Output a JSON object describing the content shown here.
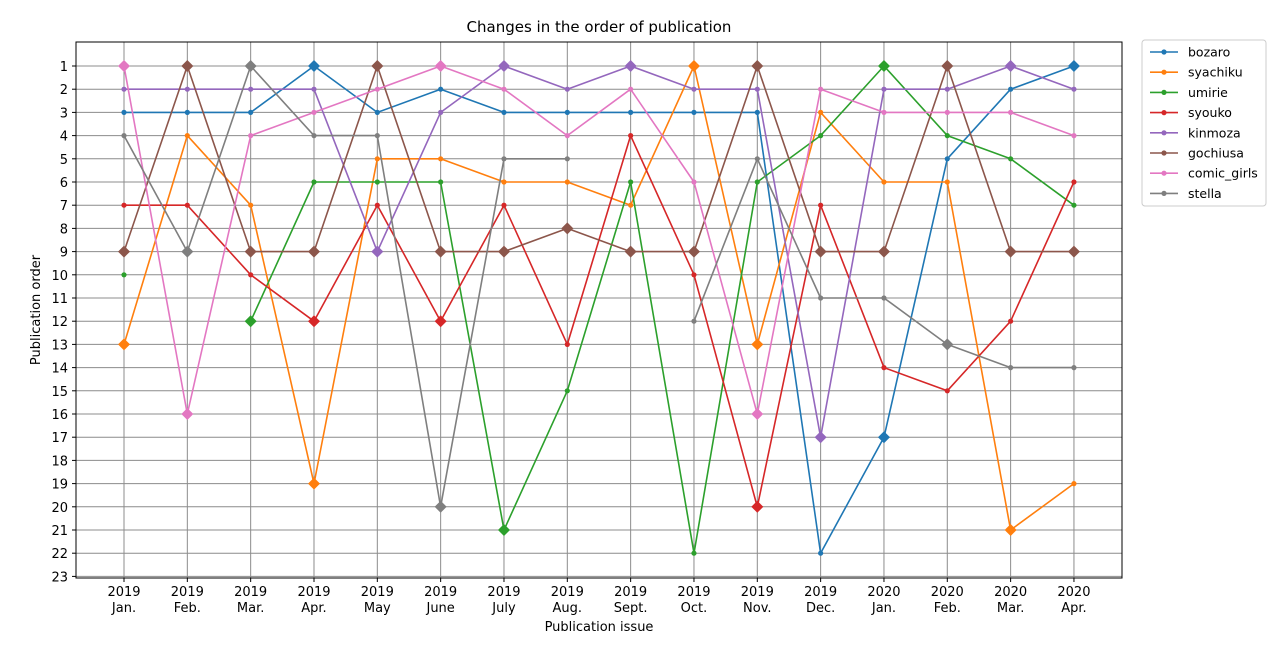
{
  "chart_data": {
    "type": "line",
    "title": "Changes in the order of publication",
    "xlabel": "Publication issue",
    "ylabel": "Publication order",
    "y_inverted": true,
    "ylim": [
      1,
      23
    ],
    "grid": true,
    "legend_placement": "outside-top-right",
    "categories": [
      [
        "2019",
        "Jan."
      ],
      [
        "2019",
        "Feb."
      ],
      [
        "2019",
        "Mar."
      ],
      [
        "2019",
        "Apr."
      ],
      [
        "2019",
        "May"
      ],
      [
        "2019",
        "June"
      ],
      [
        "2019",
        "July"
      ],
      [
        "2019",
        "Aug."
      ],
      [
        "2019",
        "Sept."
      ],
      [
        "2019",
        "Oct."
      ],
      [
        "2019",
        "Nov."
      ],
      [
        "2019",
        "Dec."
      ],
      [
        "2020",
        "Jan."
      ],
      [
        "2020",
        "Feb."
      ],
      [
        "2020",
        "Mar."
      ],
      [
        "2020",
        "Apr."
      ]
    ],
    "yticks": [
      1,
      2,
      3,
      4,
      5,
      6,
      7,
      8,
      9,
      10,
      11,
      12,
      13,
      14,
      15,
      16,
      17,
      18,
      19,
      20,
      21,
      22,
      23
    ],
    "series": [
      {
        "name": "bozaro",
        "color": "#1f77b4",
        "values": [
          3,
          3,
          3,
          1,
          3,
          2,
          3,
          3,
          3,
          3,
          3,
          22,
          17,
          5,
          2,
          1
        ],
        "highlight": [
          3,
          12,
          15
        ]
      },
      {
        "name": "syachiku",
        "color": "#ff7f0e",
        "values": [
          13,
          4,
          7,
          19,
          5,
          5,
          6,
          6,
          7,
          1,
          13,
          3,
          6,
          6,
          21,
          19
        ],
        "highlight": [
          0,
          3,
          9,
          10,
          14
        ]
      },
      {
        "name": "umirie",
        "color": "#2ca02c",
        "values": [
          10,
          null,
          12,
          6,
          6,
          6,
          21,
          15,
          6,
          22,
          6,
          4,
          1,
          4,
          5,
          7
        ],
        "highlight": [
          2,
          6,
          12
        ]
      },
      {
        "name": "syouko",
        "color": "#d62728",
        "values": [
          7,
          7,
          10,
          12,
          7,
          12,
          7,
          13,
          4,
          10,
          20,
          7,
          14,
          15,
          12,
          6
        ],
        "highlight": [
          3,
          5,
          10
        ]
      },
      {
        "name": "kinmoza",
        "color": "#9467bd",
        "values": [
          2,
          2,
          2,
          2,
          9,
          3,
          1,
          2,
          1,
          2,
          2,
          17,
          2,
          2,
          1,
          2
        ],
        "highlight": [
          4,
          6,
          8,
          11,
          14
        ]
      },
      {
        "name": "gochiusa",
        "color": "#8c564b",
        "values": [
          9,
          1,
          9,
          9,
          1,
          9,
          9,
          8,
          9,
          9,
          1,
          9,
          9,
          1,
          9,
          9
        ],
        "highlight": [
          0,
          1,
          2,
          3,
          4,
          5,
          6,
          7,
          8,
          9,
          10,
          11,
          12,
          13,
          14,
          15
        ]
      },
      {
        "name": "comic_girls",
        "color": "#e377c2",
        "values": [
          1,
          16,
          4,
          3,
          2,
          1,
          2,
          4,
          2,
          6,
          16,
          2,
          3,
          3,
          3,
          4
        ],
        "highlight": [
          0,
          1,
          5,
          10
        ]
      },
      {
        "name": "stella",
        "color": "#7f7f7f",
        "values": [
          4,
          9,
          1,
          4,
          4,
          20,
          5,
          5,
          null,
          12,
          5,
          11,
          11,
          13,
          14,
          14
        ],
        "highlight": [
          1,
          2,
          5,
          13
        ]
      }
    ]
  }
}
